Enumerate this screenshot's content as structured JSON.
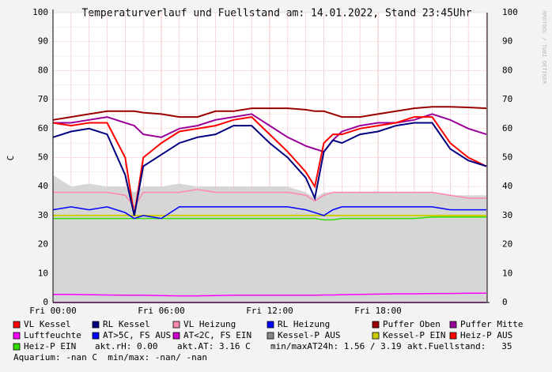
{
  "chart_data": {
    "type": "line",
    "title": "Temperaturverlauf und Fuellstand am: 14.01.2022, Stand 23:45Uhr",
    "y_label": "C",
    "watermark": "RRDTOOL / TOBI OETIKER",
    "x": [
      0,
      1,
      2,
      3,
      4,
      4.5,
      5,
      6,
      7,
      8,
      9,
      10,
      11,
      12,
      13,
      14,
      14.5,
      15,
      15.5,
      16,
      17,
      18,
      19,
      20,
      21,
      22,
      23,
      24
    ],
    "xlim": [
      0,
      24
    ],
    "xticks": [
      {
        "value": 0,
        "label": "Fri 00:00"
      },
      {
        "value": 6,
        "label": "Fri 06:00"
      },
      {
        "value": 12,
        "label": "Fri 12:00"
      },
      {
        "value": 18,
        "label": "Fri 18:00"
      }
    ],
    "ylim": [
      0,
      100
    ],
    "yticks": [
      0,
      10,
      20,
      30,
      40,
      50,
      60,
      70,
      80,
      90,
      100
    ],
    "grid": true,
    "series": [
      {
        "name": "Kessel-P AUS",
        "color": "#888888",
        "fill": "#d6d6d6",
        "style": "area",
        "values": [
          44,
          40,
          41,
          40,
          40,
          38,
          40,
          40,
          41,
          40,
          40,
          40,
          40,
          40,
          40,
          38,
          36,
          38,
          38,
          38,
          38,
          38,
          38,
          38,
          38,
          37,
          37,
          37
        ]
      },
      {
        "name": "Kessel-P EIN",
        "color": "#cccc00",
        "values": [
          30,
          30,
          30,
          30,
          30,
          30,
          30,
          30,
          30,
          30,
          30,
          30,
          30,
          30,
          30,
          30,
          30,
          30,
          30,
          30,
          30,
          30,
          30,
          30,
          30,
          30,
          30,
          30
        ]
      },
      {
        "name": "Heiz-P EIN",
        "color": "#33dd00",
        "values": [
          29,
          29,
          29,
          29,
          29,
          29,
          29,
          29,
          29,
          29,
          29,
          29,
          29,
          29,
          29,
          29,
          29,
          28.5,
          28.5,
          29,
          29,
          29,
          29,
          29,
          29.5,
          29.5,
          29.5,
          29.5
        ]
      },
      {
        "name": "VL Heizung",
        "color": "#ff88aa",
        "values": [
          38,
          38,
          38,
          38,
          37,
          33,
          38,
          38,
          38,
          39,
          38,
          38,
          38,
          38,
          38,
          37,
          35,
          37,
          38,
          38,
          38,
          38,
          38,
          38,
          38,
          37,
          36,
          36
        ]
      },
      {
        "name": "RL Heizung",
        "color": "#0000ff",
        "values": [
          32,
          33,
          32,
          33,
          31,
          29,
          30,
          29,
          33,
          33,
          33,
          33,
          33,
          33,
          33,
          32,
          31,
          30,
          32,
          33,
          33,
          33,
          33,
          33,
          33,
          32,
          32,
          32
        ]
      },
      {
        "name": "Puffer Oben",
        "color": "#990000",
        "values": [
          63,
          64,
          65,
          66,
          66,
          66,
          65.5,
          65,
          64,
          64,
          66,
          66,
          67,
          67,
          67,
          66.5,
          66,
          66,
          65,
          64,
          64,
          65,
          66,
          67,
          67.5,
          67.5,
          67.3,
          67
        ]
      },
      {
        "name": "Puffer Mitte",
        "color": "#990099",
        "values": [
          62,
          62,
          63,
          64,
          62,
          61,
          58,
          57,
          60,
          61,
          63,
          64,
          65,
          61,
          57,
          54,
          53,
          52,
          56,
          59,
          61,
          62,
          62,
          63,
          65,
          63,
          60,
          58
        ]
      },
      {
        "name": "VL Kessel",
        "color": "#ff0000",
        "values": [
          62,
          61,
          62,
          62,
          50,
          30,
          50,
          55,
          59,
          60,
          61,
          63,
          64,
          58,
          52,
          45,
          40,
          55,
          58,
          58,
          60,
          61,
          62,
          64,
          64,
          55,
          50,
          47
        ]
      },
      {
        "name": "RL Kessel",
        "color": "#000080",
        "values": [
          57,
          59,
          60,
          58,
          44,
          30,
          47,
          51,
          55,
          57,
          58,
          61,
          61,
          55,
          50,
          43,
          36,
          52,
          56,
          55,
          58,
          59,
          61,
          62,
          62,
          53,
          49,
          47
        ]
      },
      {
        "name": "Luftfeuchte",
        "color": "#ff00ff",
        "values": [
          2.8,
          2.8,
          2.7,
          2.6,
          2.5,
          2.5,
          2.5,
          2.4,
          2.3,
          2.3,
          2.4,
          2.5,
          2.5,
          2.5,
          2.5,
          2.5,
          2.5,
          2.6,
          2.6,
          2.7,
          2.8,
          2.9,
          3,
          3,
          3.1,
          3.1,
          3.2,
          3.2
        ]
      },
      {
        "name": "AT>5C, FS AUS",
        "color": "#0000ff",
        "values": [
          null,
          null,
          null,
          null,
          null,
          null,
          null,
          null,
          null,
          null,
          null,
          null,
          null,
          null,
          null,
          null,
          null,
          null,
          null,
          null,
          null,
          null,
          null,
          null,
          null,
          null,
          null,
          null
        ]
      },
      {
        "name": "AT<2C, FS EIN",
        "color": "#cc00cc",
        "values": [
          0,
          0,
          0,
          0,
          0,
          0,
          0,
          0,
          0,
          0,
          0,
          0,
          0,
          0,
          0,
          0,
          0,
          0,
          0,
          0,
          0,
          0,
          0,
          0,
          0,
          0,
          0,
          0
        ]
      },
      {
        "name": "Heiz-P AUS",
        "color": "#ff0000",
        "values": [
          null,
          null,
          null,
          null,
          null,
          null,
          null,
          null,
          null,
          null,
          null,
          null,
          null,
          null,
          null,
          null,
          null,
          null,
          null,
          null,
          null,
          null,
          null,
          null,
          null,
          null,
          null,
          null
        ]
      }
    ],
    "legend_order": [
      "VL Kessel",
      "RL Kessel",
      "VL Heizung",
      "RL Heizung",
      "Puffer Oben",
      "Puffer Mitte",
      "Luftfeuchte",
      "AT>5C, FS AUS",
      "AT<2C, FS EIN",
      "Kessel-P AUS",
      "Kessel-P EIN",
      "Heiz-P AUS",
      "Heiz-P EIN"
    ],
    "notes": [
      "akt.rH: 0.00",
      "akt.AT: 3.16 C",
      "min/maxAT24h: 1.56 / 3.19",
      "akt.Fuellstand:   35",
      "Aquarium: -nan C  min/max: -nan/ -nan"
    ]
  }
}
